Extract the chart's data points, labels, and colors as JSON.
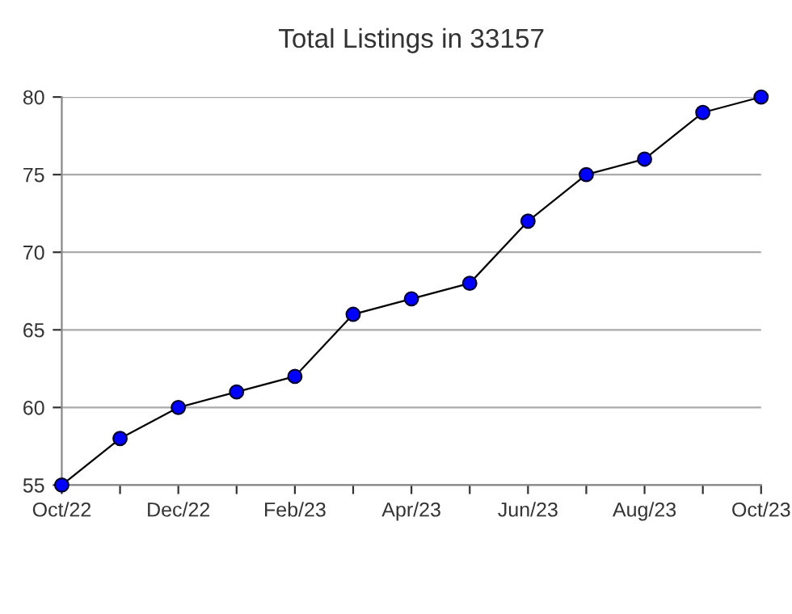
{
  "chart_data": {
    "type": "line",
    "title": "Total Listings in 33157",
    "categories": [
      "Oct/22",
      null,
      "Dec/22",
      null,
      "Feb/23",
      null,
      "Apr/23",
      null,
      "Jun/23",
      null,
      "Aug/23",
      null,
      "Oct/23"
    ],
    "series": [
      {
        "color": "#000000",
        "values": [
          55,
          58,
          60,
          61,
          62,
          66,
          67,
          68,
          72,
          75,
          76,
          79,
          80
        ]
      }
    ],
    "ylim": [
      55,
      80
    ],
    "yticks": [
      55,
      60,
      65,
      70,
      75,
      80
    ],
    "grid": "y",
    "marker": "circle",
    "line_style": "solid"
  }
}
